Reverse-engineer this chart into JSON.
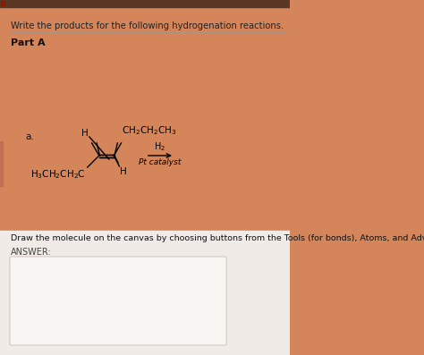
{
  "bg_color_top_stripe": "#5a3825",
  "bg_color_orange": "#d4855a",
  "bg_color_light": "#e8cfc0",
  "bg_color_white_area": "#f0ebe7",
  "answer_box_color": "#f8f5f3",
  "answer_box_border": "#ccbbbb",
  "title_text": "Write the products for the following hydrogenation reactions.",
  "part_text": "Part A",
  "label_a": "a.",
  "arrow_label_top": "H₂",
  "arrow_label_bot": "Pt catalyst",
  "instruction_text": "Draw the molecule on the canvas by choosing buttons from the Tools (for bonds), Atoms, and Advanced T",
  "answer_label": "ANSWER:"
}
